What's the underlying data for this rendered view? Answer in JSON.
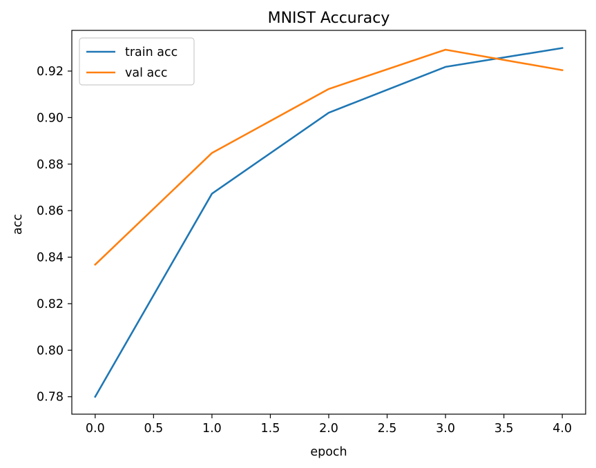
{
  "chart_data": {
    "type": "line",
    "title": "MNIST Accuracy",
    "xlabel": "epoch",
    "ylabel": "acc",
    "x": [
      0,
      1,
      2,
      3,
      4
    ],
    "series": [
      {
        "name": "train acc",
        "color": "#1f77b4",
        "values": [
          0.78,
          0.8673,
          0.9021,
          0.9218,
          0.9299
        ]
      },
      {
        "name": "val acc",
        "color": "#ff7f0e",
        "values": [
          0.8368,
          0.8848,
          0.9123,
          0.9292,
          0.9204
        ]
      }
    ],
    "xlim": [
      -0.2,
      4.2
    ],
    "ylim": [
      0.7725,
      0.9375
    ],
    "xticks": [
      0.0,
      0.5,
      1.0,
      1.5,
      2.0,
      2.5,
      3.0,
      3.5,
      4.0
    ],
    "xtick_labels": [
      "0.0",
      "0.5",
      "1.0",
      "1.5",
      "2.0",
      "2.5",
      "3.0",
      "3.5",
      "4.0"
    ],
    "yticks": [
      0.78,
      0.8,
      0.82,
      0.84,
      0.86,
      0.88,
      0.9,
      0.92
    ],
    "ytick_labels": [
      "0.78",
      "0.80",
      "0.82",
      "0.84",
      "0.86",
      "0.88",
      "0.90",
      "0.92"
    ],
    "grid": false,
    "legend_position": "upper-left"
  }
}
